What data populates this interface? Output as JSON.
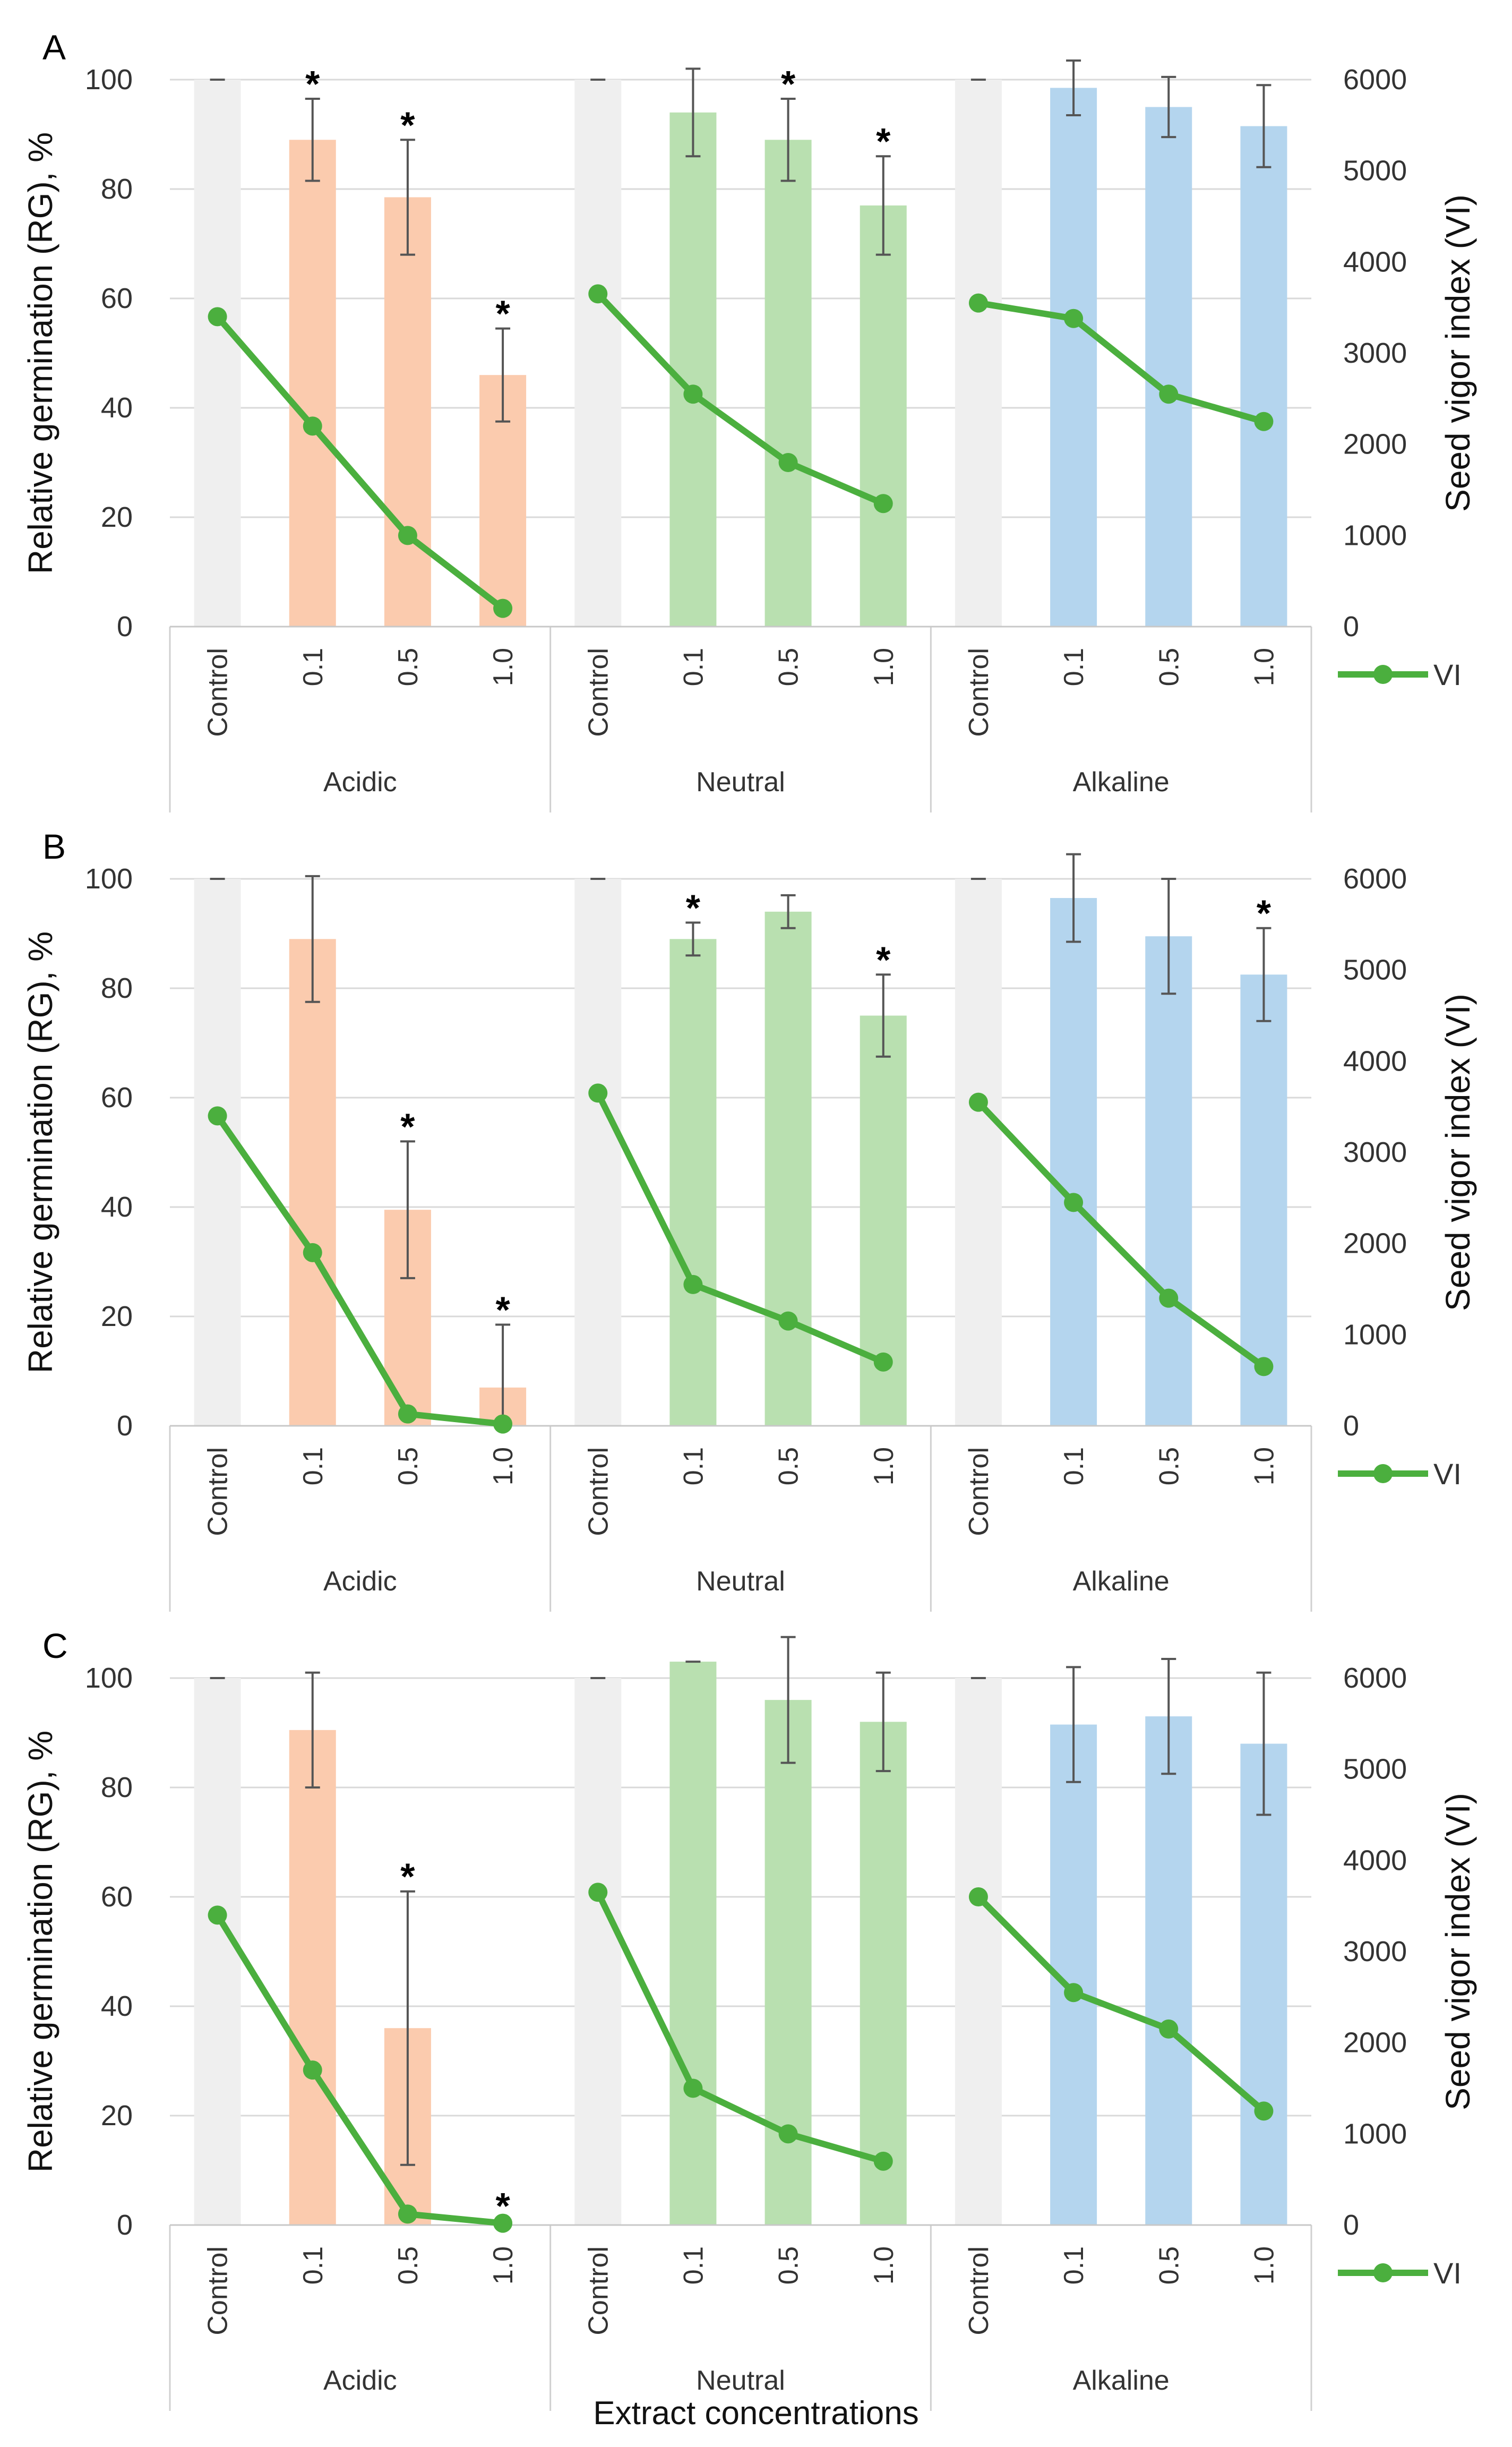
{
  "figure": {
    "xlabel": "Extract concentrations"
  },
  "chart_data": [
    {
      "type": "bar",
      "panel_label": "A",
      "ylabel_left": "Relative germination (RG), %",
      "ylabel_right": "Seed vigor index (VI)",
      "ylim_left": [
        0,
        100
      ],
      "ylim_right": [
        0,
        6000
      ],
      "yticks_left": [
        "0",
        "20",
        "40",
        "60",
        "80",
        "100"
      ],
      "yticks_right": [
        "0",
        "1000",
        "2000",
        "3000",
        "4000",
        "5000",
        "6000"
      ],
      "legend": {
        "label": "VI",
        "position": "bottom-right"
      },
      "groups": [
        {
          "name": "Acidic",
          "color": "#FBCBAE",
          "categories": [
            "Control",
            "0.1",
            "0.5",
            "1.0"
          ],
          "rg": [
            100,
            89,
            78.5,
            46
          ],
          "err": [
            0,
            7.5,
            10.5,
            8.5
          ],
          "sig": [
            "",
            "*",
            "*",
            "*"
          ],
          "vi": [
            3400,
            2200,
            1000,
            200
          ]
        },
        {
          "name": "Neutral",
          "color": "#B9E0B0",
          "categories": [
            "Control",
            "0.1",
            "0.5",
            "1.0"
          ],
          "rg": [
            100,
            94,
            89,
            77
          ],
          "err": [
            0,
            8,
            7.5,
            9
          ],
          "sig": [
            "",
            "",
            "*",
            "*"
          ],
          "vi": [
            3650,
            2550,
            1800,
            1350
          ]
        },
        {
          "name": "Alkaline",
          "color": "#B4D5EE",
          "categories": [
            "Control",
            "0.1",
            "0.5",
            "1.0"
          ],
          "rg": [
            100,
            98.5,
            95,
            91.5
          ],
          "err": [
            0,
            5,
            5.5,
            7.5
          ],
          "sig": [
            "",
            "",
            "",
            ""
          ],
          "vi": [
            3550,
            3380,
            2550,
            2250
          ]
        }
      ],
      "line_color": "#4BAF3E",
      "control_color": "#EFEFEF"
    },
    {
      "type": "bar",
      "panel_label": "B",
      "ylabel_left": "Relative germination (RG), %",
      "ylabel_right": "Seed vigor index (VI)",
      "ylim_left": [
        0,
        100
      ],
      "ylim_right": [
        0,
        6000
      ],
      "yticks_left": [
        "0",
        "20",
        "40",
        "60",
        "80",
        "100"
      ],
      "yticks_right": [
        "0",
        "1000",
        "2000",
        "3000",
        "4000",
        "5000",
        "6000"
      ],
      "legend": {
        "label": "VI",
        "position": "bottom-right"
      },
      "groups": [
        {
          "name": "Acidic",
          "color": "#FBCBAE",
          "categories": [
            "Control",
            "0.1",
            "0.5",
            "1.0"
          ],
          "rg": [
            100,
            89,
            39.5,
            7
          ],
          "err": [
            0,
            11.5,
            12.5,
            11.5
          ],
          "sig": [
            "",
            "",
            "*",
            "*"
          ],
          "vi": [
            3400,
            1900,
            130,
            20
          ]
        },
        {
          "name": "Neutral",
          "color": "#B9E0B0",
          "categories": [
            "Control",
            "0.1",
            "0.5",
            "1.0"
          ],
          "rg": [
            100,
            89,
            94,
            75
          ],
          "err": [
            0,
            3,
            3,
            7.5
          ],
          "sig": [
            "",
            "*",
            "",
            "*"
          ],
          "vi": [
            3650,
            1550,
            1150,
            700
          ]
        },
        {
          "name": "Alkaline",
          "color": "#B4D5EE",
          "categories": [
            "Control",
            "0.1",
            "0.5",
            "1.0"
          ],
          "rg": [
            100,
            96.5,
            89.5,
            82.5
          ],
          "err": [
            0,
            8,
            10.5,
            8.5
          ],
          "sig": [
            "",
            "",
            "",
            "*"
          ],
          "vi": [
            3550,
            2450,
            1400,
            650
          ]
        }
      ],
      "line_color": "#4BAF3E",
      "control_color": "#EFEFEF"
    },
    {
      "type": "bar",
      "panel_label": "C",
      "ylabel_left": "Relative germination (RG), %",
      "ylabel_right": "Seed vigor index (VI)",
      "ylim_left": [
        0,
        100
      ],
      "ylim_right": [
        0,
        6000
      ],
      "yticks_left": [
        "0",
        "20",
        "40",
        "60",
        "80",
        "100"
      ],
      "yticks_right": [
        "0",
        "1000",
        "2000",
        "3000",
        "4000",
        "5000",
        "6000"
      ],
      "legend": {
        "label": "VI",
        "position": "bottom-right"
      },
      "groups": [
        {
          "name": "Acidic",
          "color": "#FBCBAE",
          "categories": [
            "Control",
            "0.1",
            "0.5",
            "1.0"
          ],
          "rg": [
            100,
            90.5,
            36,
            0
          ],
          "err": [
            0,
            10.5,
            25,
            0.8
          ],
          "sig": [
            "",
            "",
            "*",
            "*"
          ],
          "vi": [
            3400,
            1700,
            120,
            20
          ]
        },
        {
          "name": "Neutral",
          "color": "#B9E0B0",
          "categories": [
            "Control",
            "0.1",
            "0.5",
            "1.0"
          ],
          "rg": [
            100,
            103,
            96,
            92
          ],
          "err": [
            0,
            0,
            11.5,
            9
          ],
          "sig": [
            "",
            "",
            "",
            ""
          ],
          "vi": [
            3650,
            1500,
            1000,
            700
          ]
        },
        {
          "name": "Alkaline",
          "color": "#B4D5EE",
          "categories": [
            "Control",
            "0.1",
            "0.5",
            "1.0"
          ],
          "rg": [
            100,
            91.5,
            93,
            88
          ],
          "err": [
            0,
            10.5,
            10.5,
            13
          ],
          "sig": [
            "",
            "",
            "",
            ""
          ],
          "vi": [
            3600,
            2550,
            2150,
            1250
          ]
        }
      ],
      "line_color": "#4BAF3E",
      "control_color": "#EFEFEF"
    }
  ]
}
